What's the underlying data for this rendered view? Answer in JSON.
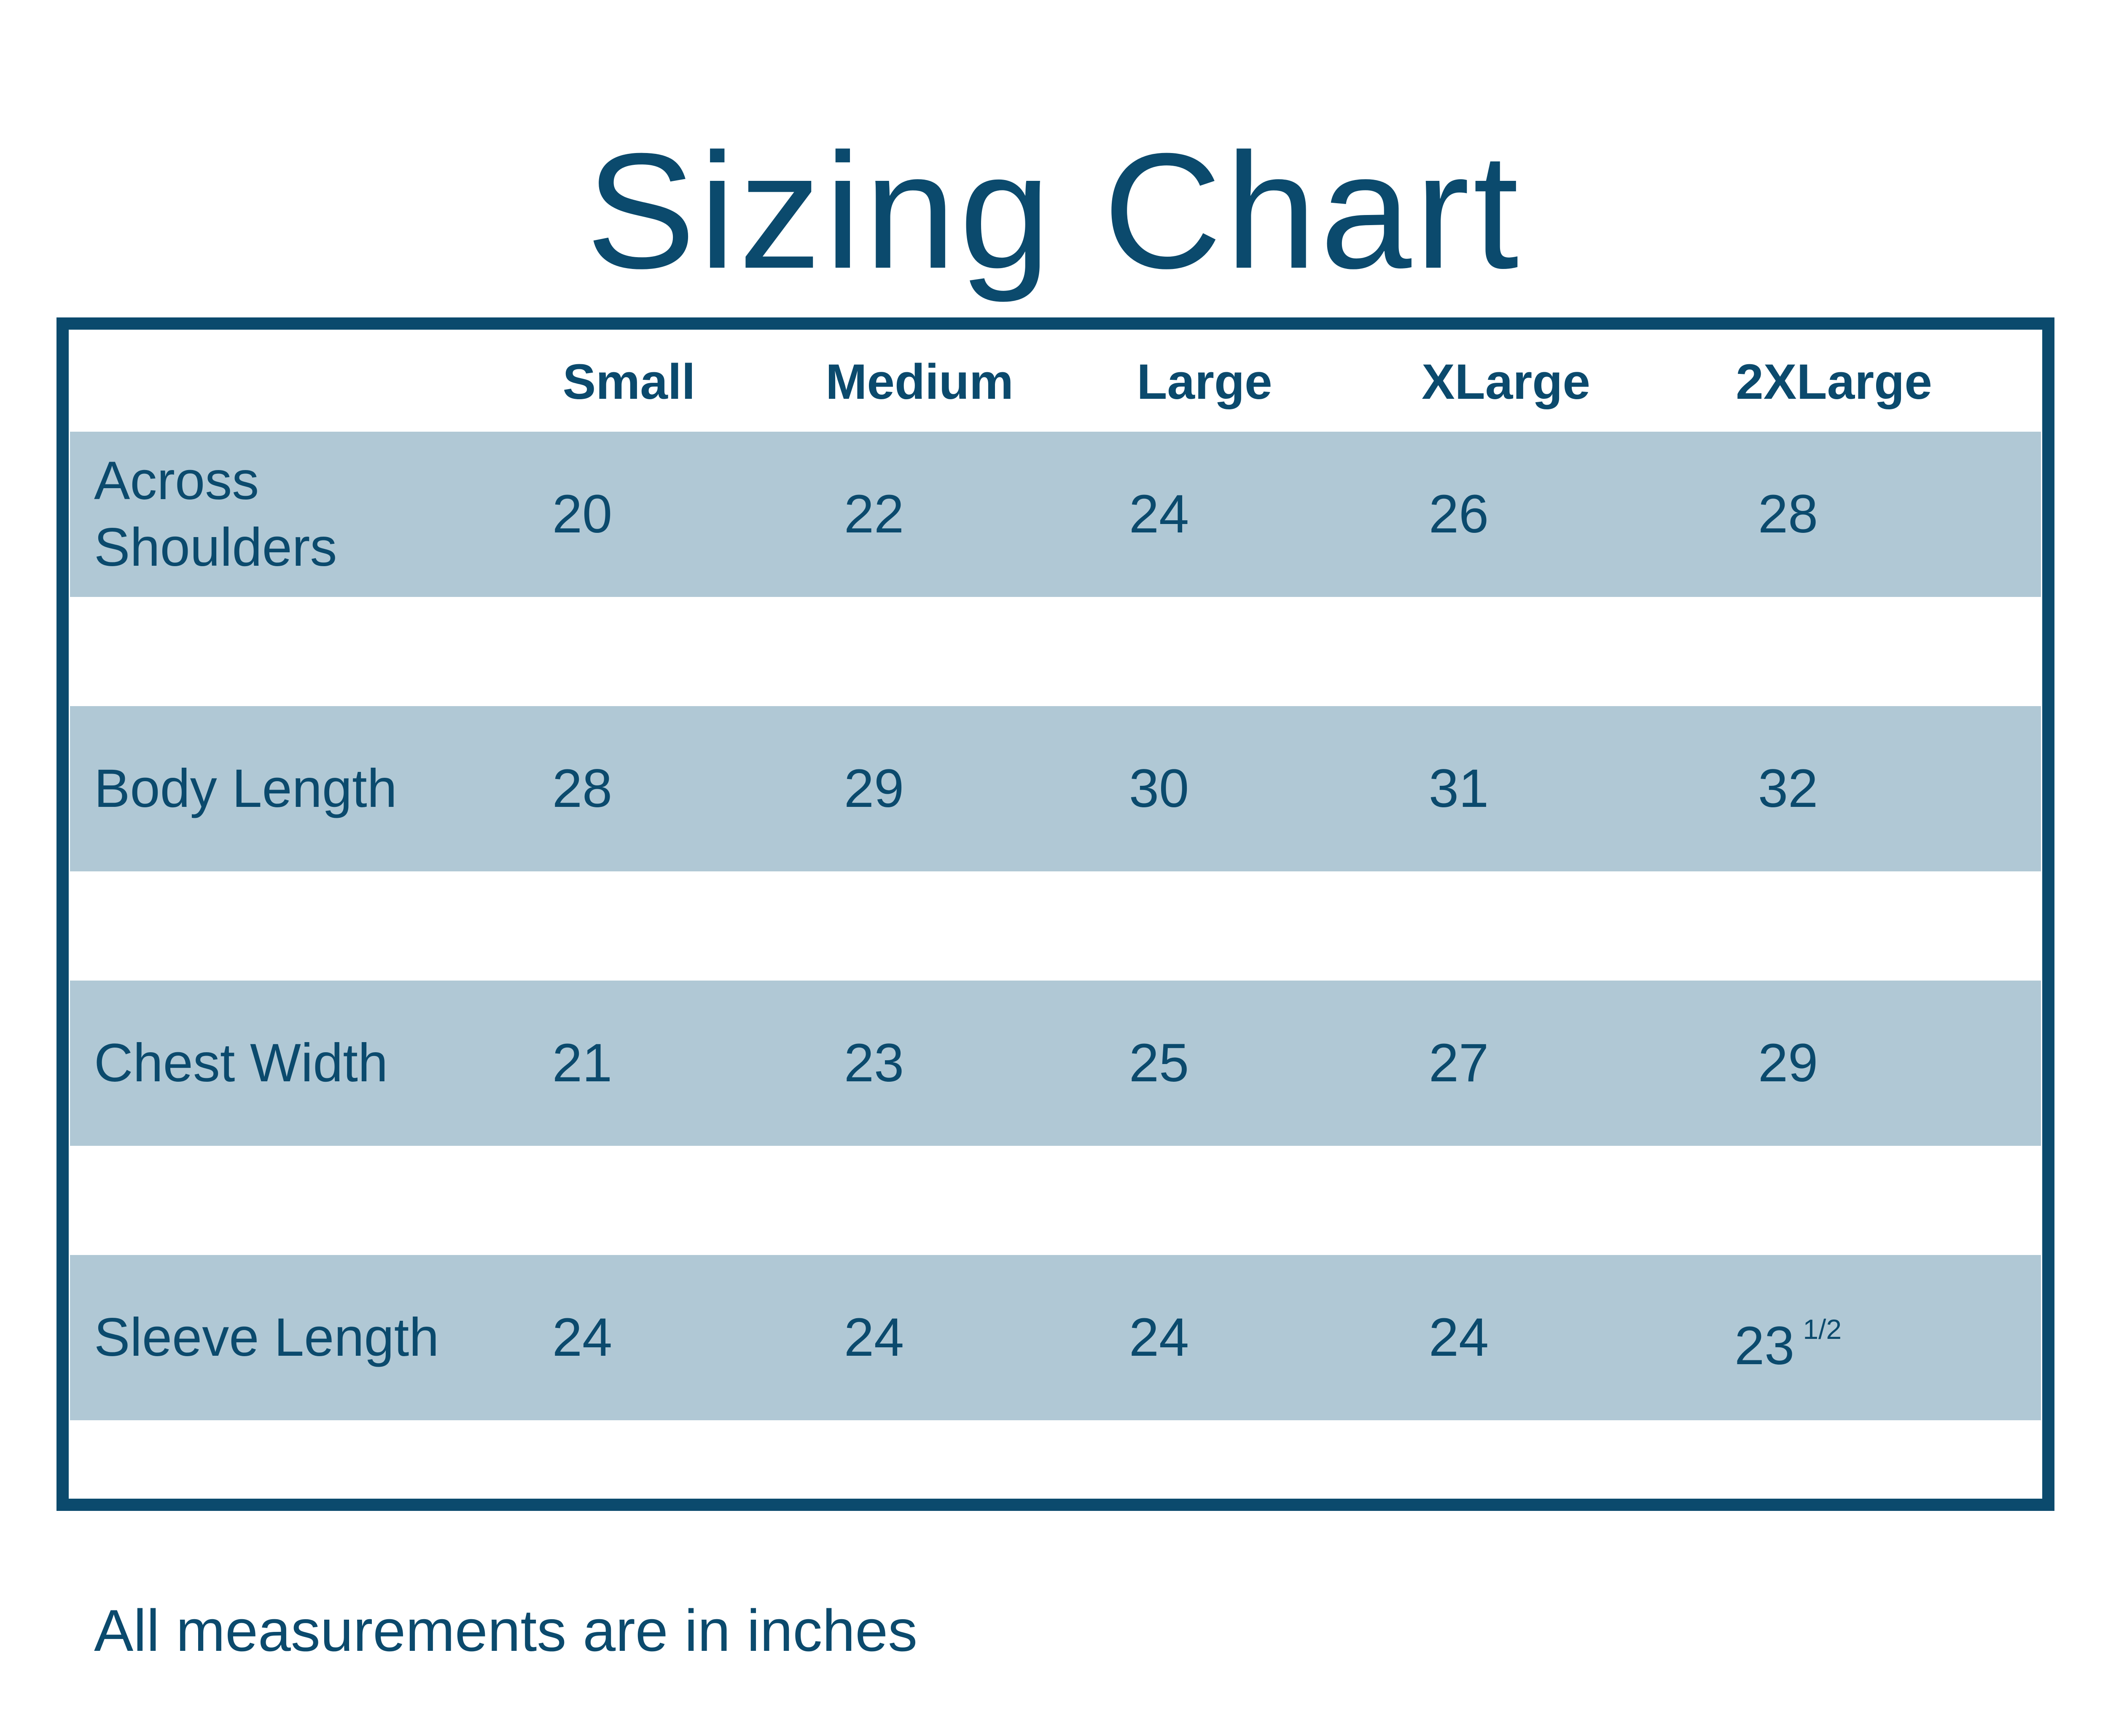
{
  "title": "Sizing Chart",
  "table": {
    "header": [
      "Small",
      "Medium",
      "Large",
      "XLarge",
      "2XLarge"
    ],
    "rows": [
      {
        "label": "Across Shoulders",
        "cells": [
          "20",
          "22",
          "24",
          "26",
          "28"
        ]
      },
      {
        "label": "Body Length",
        "cells": [
          "28",
          "29",
          "30",
          "31",
          "32"
        ]
      },
      {
        "label": "Chest Width",
        "cells": [
          "21",
          "23",
          "25",
          "27",
          "29"
        ]
      },
      {
        "label": "Sleeve Length",
        "cells": [
          "24",
          "24",
          "24",
          "24",
          {
            "text": "23",
            "sup": "1/2"
          }
        ]
      }
    ]
  },
  "footnote": "All measurements are in inches"
}
